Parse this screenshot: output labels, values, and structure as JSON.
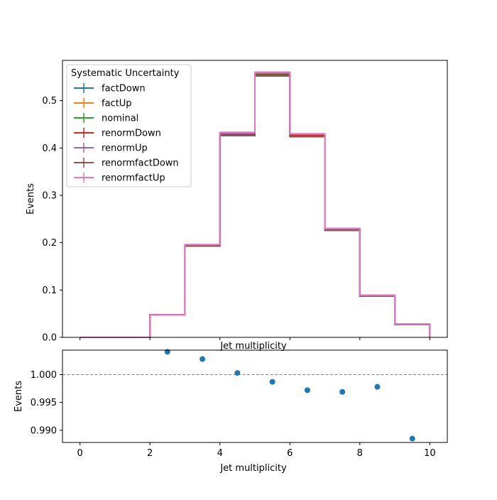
{
  "chart_data": [
    {
      "type": "step",
      "xlabel": "Jet multiplicity",
      "ylabel": "Events",
      "xlim": [
        -0.5,
        10.5
      ],
      "ylim": [
        0,
        0.585
      ],
      "bin_edges": [
        0,
        1,
        2,
        3,
        4,
        5,
        6,
        7,
        8,
        9,
        10
      ],
      "y_ticks": [
        "0.0",
        "0.1",
        "0.2",
        "0.3",
        "0.4",
        "0.5"
      ],
      "y_tick_values": [
        0,
        0.1,
        0.2,
        0.3,
        0.4,
        0.5
      ],
      "x_tick_values": [
        0,
        2,
        4,
        6,
        8,
        10
      ],
      "legend": {
        "title": "Systematic Uncertainty",
        "position": "upper-left"
      },
      "series": [
        {
          "name": "factDown",
          "color": "#1f77b4",
          "values": [
            0.0,
            0.0,
            0.0475,
            0.193,
            0.427,
            0.553,
            0.425,
            0.227,
            0.088,
            0.027
          ]
        },
        {
          "name": "factUp",
          "color": "#ff7f0e",
          "values": [
            0.0,
            0.0,
            0.0475,
            0.195,
            0.432,
            0.559,
            0.429,
            0.229,
            0.089,
            0.028
          ]
        },
        {
          "name": "nominal",
          "color": "#2ca02c",
          "values": [
            0.0,
            0.0,
            0.0475,
            0.194,
            0.429,
            0.556,
            0.427,
            0.228,
            0.088,
            0.027
          ]
        },
        {
          "name": "renormDown",
          "color": "#d62728",
          "values": [
            0.0,
            0.0,
            0.0475,
            0.194,
            0.428,
            0.554,
            0.426,
            0.227,
            0.088,
            0.027
          ]
        },
        {
          "name": "renormUp",
          "color": "#9467bd",
          "values": [
            0.0,
            0.0,
            0.0475,
            0.195,
            0.431,
            0.558,
            0.429,
            0.229,
            0.089,
            0.028
          ]
        },
        {
          "name": "renormfactDown",
          "color": "#8c564b",
          "values": [
            0.0,
            0.0,
            0.0475,
            0.193,
            0.426,
            0.552,
            0.424,
            0.226,
            0.087,
            0.027
          ]
        },
        {
          "name": "renormfactUp",
          "color": "#e377c2",
          "values": [
            0.0,
            0.0,
            0.0475,
            0.196,
            0.433,
            0.56,
            0.43,
            0.23,
            0.089,
            0.028
          ]
        }
      ]
    },
    {
      "type": "scatter",
      "xlabel": "Jet multiplicity",
      "ylabel": "Events",
      "xlim": [
        -0.5,
        10.5
      ],
      "ylim": [
        0.9878,
        1.0044
      ],
      "x_ticks": [
        "0",
        "2",
        "4",
        "6",
        "8",
        "10"
      ],
      "x_tick_values": [
        0,
        2,
        4,
        6,
        8,
        10
      ],
      "y_ticks": [
        "0.990",
        "0.995",
        "1.000"
      ],
      "y_tick_values": [
        0.99,
        0.995,
        1.0
      ],
      "reference_line": 1.0,
      "color": "#1f77b4",
      "x": [
        2.5,
        3.5,
        4.5,
        5.5,
        6.5,
        7.5,
        8.5,
        9.5
      ],
      "y": [
        1.0041,
        1.0028,
        1.0003,
        0.9987,
        0.9972,
        0.9969,
        0.9978,
        0.9885
      ]
    }
  ]
}
